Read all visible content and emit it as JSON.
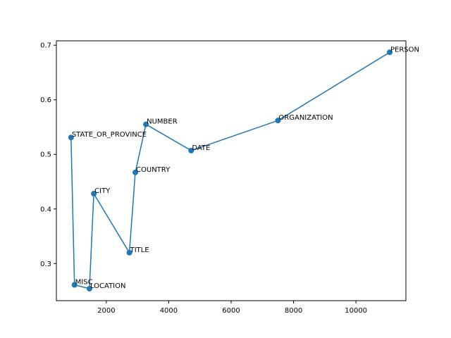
{
  "chart_data": {
    "type": "line",
    "title": "",
    "xlabel": "",
    "ylabel": "",
    "xlim": [
      400,
      11600
    ],
    "ylim": [
      0.232,
      0.708
    ],
    "xticks": [
      2000,
      4000,
      6000,
      8000,
      10000
    ],
    "yticks": [
      0.3,
      0.4,
      0.5,
      0.6,
      0.7
    ],
    "grid": false,
    "line_color": "#1f77b4",
    "points": [
      {
        "label": "STATE_OR_PROVINCE",
        "x": 870,
        "y": 0.531
      },
      {
        "label": "MISC",
        "x": 980,
        "y": 0.261
      },
      {
        "label": "LOCATION",
        "x": 1460,
        "y": 0.254
      },
      {
        "label": "CITY",
        "x": 1600,
        "y": 0.428
      },
      {
        "label": "TITLE",
        "x": 2740,
        "y": 0.32
      },
      {
        "label": "COUNTRY",
        "x": 2930,
        "y": 0.467
      },
      {
        "label": "NUMBER",
        "x": 3270,
        "y": 0.555
      },
      {
        "label": "DATE",
        "x": 4720,
        "y": 0.507
      },
      {
        "label": "ORGANIZATION",
        "x": 7500,
        "y": 0.562
      },
      {
        "label": "PERSON",
        "x": 11080,
        "y": 0.687
      }
    ]
  }
}
